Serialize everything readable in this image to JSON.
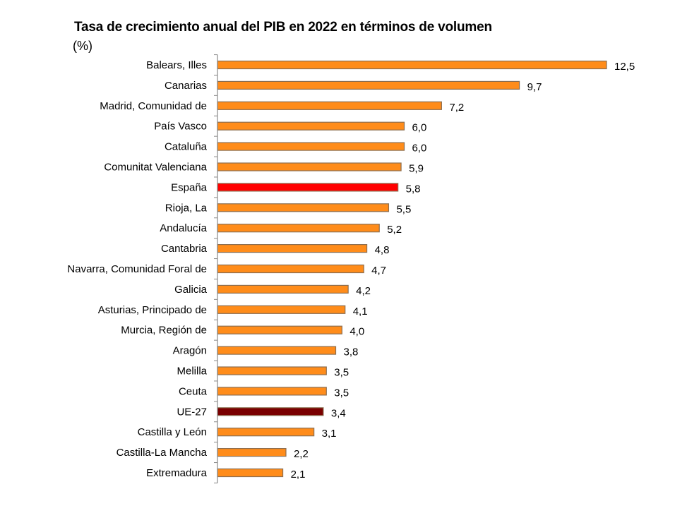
{
  "chart_data": {
    "type": "bar",
    "orientation": "horizontal",
    "title": "Tasa de crecimiento anual del PIB en 2022 en términos de volumen",
    "subtitle": "(%)",
    "categories": [
      "Balears, Illes",
      "Canarias",
      "Madrid, Comunidad de",
      "País Vasco",
      "Cataluña",
      "Comunitat Valenciana",
      "España",
      "Rioja, La",
      "Andalucía",
      "Cantabria",
      "Navarra, Comunidad Foral de",
      "Galicia",
      "Asturias, Principado de",
      "Murcia, Región de",
      "Aragón",
      "Melilla",
      "Ceuta",
      "UE-27",
      "Castilla y León",
      "Castilla-La Mancha",
      "Extremadura"
    ],
    "values": [
      12.5,
      9.7,
      7.2,
      6.0,
      6.0,
      5.9,
      5.8,
      5.5,
      5.2,
      4.8,
      4.7,
      4.2,
      4.1,
      4.0,
      3.8,
      3.5,
      3.5,
      3.4,
      3.1,
      2.2,
      2.1
    ],
    "value_labels": [
      "12,5",
      "9,7",
      "7,2",
      "6,0",
      "6,0",
      "5,9",
      "5,8",
      "5,5",
      "5,2",
      "4,8",
      "4,7",
      "4,2",
      "4,1",
      "4,0",
      "3,8",
      "3,5",
      "3,5",
      "3,4",
      "3,1",
      "2,2",
      "2,1"
    ],
    "xlim": [
      0,
      12.5
    ],
    "grid": false,
    "legend": "none",
    "colors": {
      "default": "#ff8c1a",
      "España": "#ff0000",
      "UE-27": "#7a0000",
      "border": "#8c6e50",
      "axis": "#888888"
    }
  }
}
